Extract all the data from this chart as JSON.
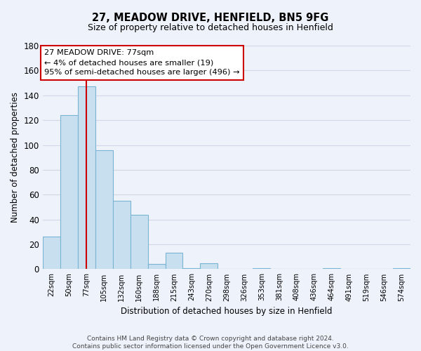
{
  "title": "27, MEADOW DRIVE, HENFIELD, BN5 9FG",
  "subtitle": "Size of property relative to detached houses in Henfield",
  "xlabel": "Distribution of detached houses by size in Henfield",
  "ylabel": "Number of detached properties",
  "bin_labels": [
    "22sqm",
    "50sqm",
    "77sqm",
    "105sqm",
    "132sqm",
    "160sqm",
    "188sqm",
    "215sqm",
    "243sqm",
    "270sqm",
    "298sqm",
    "326sqm",
    "353sqm",
    "381sqm",
    "408sqm",
    "436sqm",
    "464sqm",
    "491sqm",
    "519sqm",
    "546sqm",
    "574sqm"
  ],
  "bar_values": [
    26,
    124,
    147,
    96,
    55,
    44,
    4,
    13,
    1,
    5,
    0,
    0,
    1,
    0,
    0,
    0,
    1,
    0,
    0,
    0,
    1
  ],
  "bar_color": "#c8dff0",
  "bar_edge_color": "#7ab4d4",
  "vline_x_idx": 2,
  "vline_color": "#cc0000",
  "annotation_line1": "27 MEADOW DRIVE: 77sqm",
  "annotation_line2": "← 4% of detached houses are smaller (19)",
  "annotation_line3": "95% of semi-detached houses are larger (496) →",
  "annotation_box_color": "white",
  "annotation_box_edge_color": "#cc0000",
  "ylim": [
    0,
    180
  ],
  "yticks": [
    0,
    20,
    40,
    60,
    80,
    100,
    120,
    140,
    160,
    180
  ],
  "footer_line1": "Contains HM Land Registry data © Crown copyright and database right 2024.",
  "footer_line2": "Contains public sector information licensed under the Open Government Licence v3.0.",
  "bg_color": "#eef2fb",
  "grid_color": "#d0d8e8"
}
